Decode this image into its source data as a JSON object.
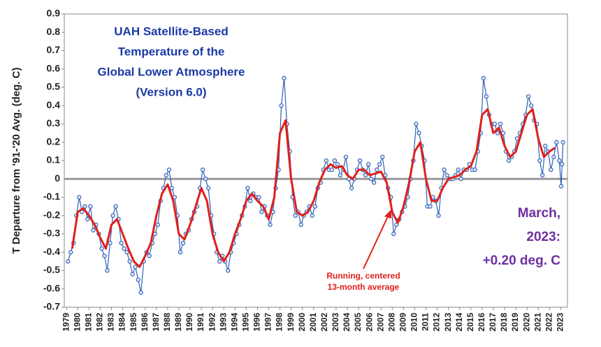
{
  "chart_data": {
    "type": "line",
    "title_lines": [
      "UAH Satellite-Based",
      "Temperature of the",
      "Global Lower Atmosphere",
      "(Version 6.0)"
    ],
    "ylabel": "T Departure from '91-'20 Avg. (deg. C)",
    "annotations": [
      "March,",
      "2023:",
      "+0.20 deg. C",
      "Running, centered",
      "13-month average"
    ],
    "xlim": [
      1978.8,
      2023.6
    ],
    "xticks": [
      1979,
      1980,
      1981,
      1982,
      1983,
      1984,
      1985,
      1986,
      1987,
      1988,
      1989,
      1990,
      1991,
      1992,
      1993,
      1994,
      1995,
      1996,
      1997,
      1998,
      1999,
      2000,
      2001,
      2002,
      2003,
      2004,
      2005,
      2006,
      2007,
      2008,
      2009,
      2010,
      2011,
      2012,
      2013,
      2014,
      2015,
      2016,
      2017,
      2018,
      2019,
      2020,
      2021,
      2022,
      2023
    ],
    "ylim": [
      -0.7,
      0.9
    ],
    "yticks": [
      -0.7,
      -0.6,
      -0.5,
      -0.4,
      -0.3,
      -0.2,
      -0.1,
      0,
      0.1,
      0.2,
      0.3,
      0.4,
      0.5,
      0.6,
      0.7,
      0.8,
      0.9
    ],
    "series": [
      {
        "color": "#2e5fb8",
        "markers": true,
        "x": [
          1979.125,
          1979.375,
          1979.625,
          1979.875,
          1980.125,
          1980.375,
          1980.625,
          1980.875,
          1981.125,
          1981.375,
          1981.625,
          1981.875,
          1982.125,
          1982.375,
          1982.625,
          1982.875,
          1983.125,
          1983.375,
          1983.625,
          1983.875,
          1984.125,
          1984.375,
          1984.625,
          1984.875,
          1985.125,
          1985.375,
          1985.625,
          1985.875,
          1986.125,
          1986.375,
          1986.625,
          1986.875,
          1987.125,
          1987.375,
          1987.625,
          1987.875,
          1988.125,
          1988.375,
          1988.625,
          1988.875,
          1989.125,
          1989.375,
          1989.625,
          1989.875,
          1990.125,
          1990.375,
          1990.625,
          1990.875,
          1991.125,
          1991.375,
          1991.625,
          1991.875,
          1992.125,
          1992.375,
          1992.625,
          1992.875,
          1993.125,
          1993.375,
          1993.625,
          1993.875,
          1994.125,
          1994.375,
          1994.625,
          1994.875,
          1995.125,
          1995.375,
          1995.625,
          1995.875,
          1996.125,
          1996.375,
          1996.625,
          1996.875,
          1997.125,
          1997.375,
          1997.625,
          1997.875,
          1998.125,
          1998.375,
          1998.625,
          1998.875,
          1999.125,
          1999.375,
          1999.625,
          1999.875,
          2000.125,
          2000.375,
          2000.625,
          2000.875,
          2001.125,
          2001.375,
          2001.625,
          2001.875,
          2002.125,
          2002.375,
          2002.625,
          2002.875,
          2003.125,
          2003.375,
          2003.625,
          2003.875,
          2004.125,
          2004.375,
          2004.625,
          2004.875,
          2005.125,
          2005.375,
          2005.625,
          2005.875,
          2006.125,
          2006.375,
          2006.625,
          2006.875,
          2007.125,
          2007.375,
          2007.625,
          2007.875,
          2008.125,
          2008.375,
          2008.625,
          2008.875,
          2009.125,
          2009.375,
          2009.625,
          2009.875,
          2010.125,
          2010.375,
          2010.625,
          2010.875,
          2011.125,
          2011.375,
          2011.625,
          2011.875,
          2012.125,
          2012.375,
          2012.625,
          2012.875,
          2013.125,
          2013.375,
          2013.625,
          2013.875,
          2014.125,
          2014.375,
          2014.625,
          2014.875,
          2015.125,
          2015.375,
          2015.625,
          2015.875,
          2016.125,
          2016.375,
          2016.625,
          2016.875,
          2017.125,
          2017.375,
          2017.625,
          2017.875,
          2018.125,
          2018.375,
          2018.625,
          2018.875,
          2019.125,
          2019.375,
          2019.625,
          2019.875,
          2020.125,
          2020.375,
          2020.625,
          2020.875,
          2021.125,
          2021.375,
          2021.625,
          2021.875,
          2022.125,
          2022.375,
          2022.625,
          2022.875,
          2023.04,
          2023.12,
          2023.21
        ],
        "values": [
          -0.45,
          -0.4,
          -0.35,
          -0.2,
          -0.1,
          -0.18,
          -0.15,
          -0.22,
          -0.15,
          -0.28,
          -0.25,
          -0.3,
          -0.38,
          -0.42,
          -0.5,
          -0.35,
          -0.2,
          -0.15,
          -0.22,
          -0.35,
          -0.38,
          -0.4,
          -0.45,
          -0.52,
          -0.48,
          -0.55,
          -0.62,
          -0.45,
          -0.4,
          -0.42,
          -0.35,
          -0.3,
          -0.25,
          -0.12,
          -0.05,
          0.02,
          0.05,
          -0.05,
          -0.1,
          -0.2,
          -0.4,
          -0.35,
          -0.3,
          -0.28,
          -0.22,
          -0.18,
          -0.15,
          -0.05,
          0.05,
          0,
          -0.05,
          -0.2,
          -0.3,
          -0.4,
          -0.45,
          -0.42,
          -0.45,
          -0.5,
          -0.4,
          -0.35,
          -0.3,
          -0.25,
          -0.2,
          -0.15,
          -0.05,
          -0.12,
          -0.08,
          -0.1,
          -0.1,
          -0.18,
          -0.15,
          -0.2,
          -0.25,
          -0.18,
          -0.05,
          0.05,
          0.4,
          0.55,
          0.3,
          0.15,
          -0.1,
          -0.2,
          -0.18,
          -0.25,
          -0.2,
          -0.18,
          -0.15,
          -0.2,
          -0.15,
          -0.05,
          -0.02,
          0.05,
          0.1,
          0.05,
          0.05,
          0.1,
          0.08,
          0.02,
          0.05,
          0.12,
          0,
          -0.05,
          0,
          0.05,
          0.1,
          0.05,
          0.02,
          0.08,
          0,
          -0.02,
          0.05,
          0.08,
          0.12,
          0.02,
          -0.05,
          -0.1,
          -0.3,
          -0.25,
          -0.22,
          -0.18,
          -0.15,
          -0.1,
          0,
          0.1,
          0.3,
          0.25,
          0.18,
          0.1,
          -0.15,
          -0.15,
          -0.1,
          -0.12,
          -0.2,
          -0.05,
          0.05,
          0.02,
          0,
          0,
          0.02,
          0.05,
          0,
          0.05,
          0.05,
          0.08,
          0.05,
          0.05,
          0.15,
          0.25,
          0.55,
          0.45,
          0.35,
          0.3,
          0.3,
          0.25,
          0.3,
          0.25,
          0.15,
          0.1,
          0.12,
          0.15,
          0.22,
          0.25,
          0.3,
          0.35,
          0.45,
          0.4,
          0.32,
          0.3,
          0.1,
          0.02,
          0.18,
          0.15,
          0.05,
          0.12,
          0.2,
          0.1,
          -0.04,
          0.08,
          0.2
        ]
      },
      {
        "color": "#e0201b",
        "markers": false,
        "x": [
          1979.5,
          1980,
          1980.5,
          1981,
          1981.5,
          1982,
          1982.5,
          1983,
          1983.5,
          1984,
          1984.5,
          1985,
          1985.5,
          1986,
          1986.5,
          1987,
          1987.5,
          1988,
          1988.5,
          1989,
          1989.5,
          1990,
          1990.5,
          1991,
          1991.5,
          1992,
          1992.5,
          1993,
          1993.5,
          1994,
          1994.5,
          1995,
          1995.5,
          1996,
          1996.5,
          1997,
          1997.5,
          1998,
          1998.5,
          1999,
          1999.5,
          2000,
          2000.5,
          2001,
          2001.5,
          2002,
          2002.5,
          2003,
          2003.5,
          2004,
          2004.5,
          2005,
          2005.5,
          2006,
          2006.5,
          2007,
          2007.5,
          2008,
          2008.5,
          2009,
          2009.5,
          2010,
          2010.5,
          2011,
          2011.5,
          2012,
          2012.5,
          2013,
          2013.5,
          2014,
          2014.5,
          2015,
          2015.5,
          2016,
          2016.5,
          2017,
          2017.5,
          2018,
          2018.5,
          2019,
          2019.5,
          2020,
          2020.5,
          2021,
          2021.5,
          2022,
          2022.5
        ],
        "values": [
          -0.38,
          -0.18,
          -0.16,
          -0.2,
          -0.25,
          -0.32,
          -0.38,
          -0.25,
          -0.22,
          -0.3,
          -0.38,
          -0.45,
          -0.48,
          -0.42,
          -0.35,
          -0.2,
          -0.08,
          -0.03,
          -0.12,
          -0.3,
          -0.33,
          -0.25,
          -0.15,
          -0.05,
          -0.12,
          -0.3,
          -0.4,
          -0.45,
          -0.4,
          -0.3,
          -0.22,
          -0.12,
          -0.08,
          -0.12,
          -0.15,
          -0.22,
          -0.1,
          0.25,
          0.32,
          0,
          -0.18,
          -0.2,
          -0.18,
          -0.12,
          -0.02,
          0.05,
          0.08,
          0.06,
          0.07,
          0.02,
          0,
          0.05,
          0.05,
          0.02,
          0.03,
          0.04,
          -0.02,
          -0.18,
          -0.24,
          -0.15,
          -0.02,
          0.15,
          0.2,
          0,
          -0.12,
          -0.12,
          -0.05,
          0,
          0.01,
          0.02,
          0.05,
          0.07,
          0.15,
          0.35,
          0.38,
          0.25,
          0.28,
          0.18,
          0.12,
          0.15,
          0.25,
          0.35,
          0.38,
          0.22,
          0.12,
          0.15,
          0.17
        ]
      }
    ]
  }
}
